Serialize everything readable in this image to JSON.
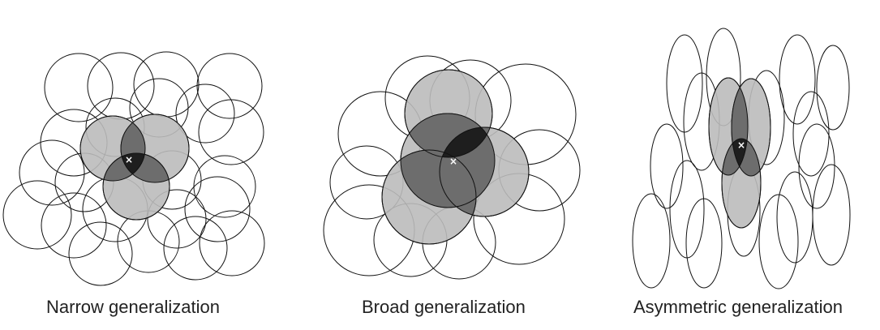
{
  "colors": {
    "outline": "#111111",
    "highlight_fill": "#bbbbbb",
    "pair_overlap_fill": "#6d6d6d",
    "center_fill": "#1e1e1e",
    "marker": "#ffffff"
  },
  "marker_symbol": "×",
  "panels": [
    {
      "caption": "Narrow generalization"
    },
    {
      "caption": "Broad generalization"
    },
    {
      "caption": "Asymmetric generalization"
    }
  ]
}
